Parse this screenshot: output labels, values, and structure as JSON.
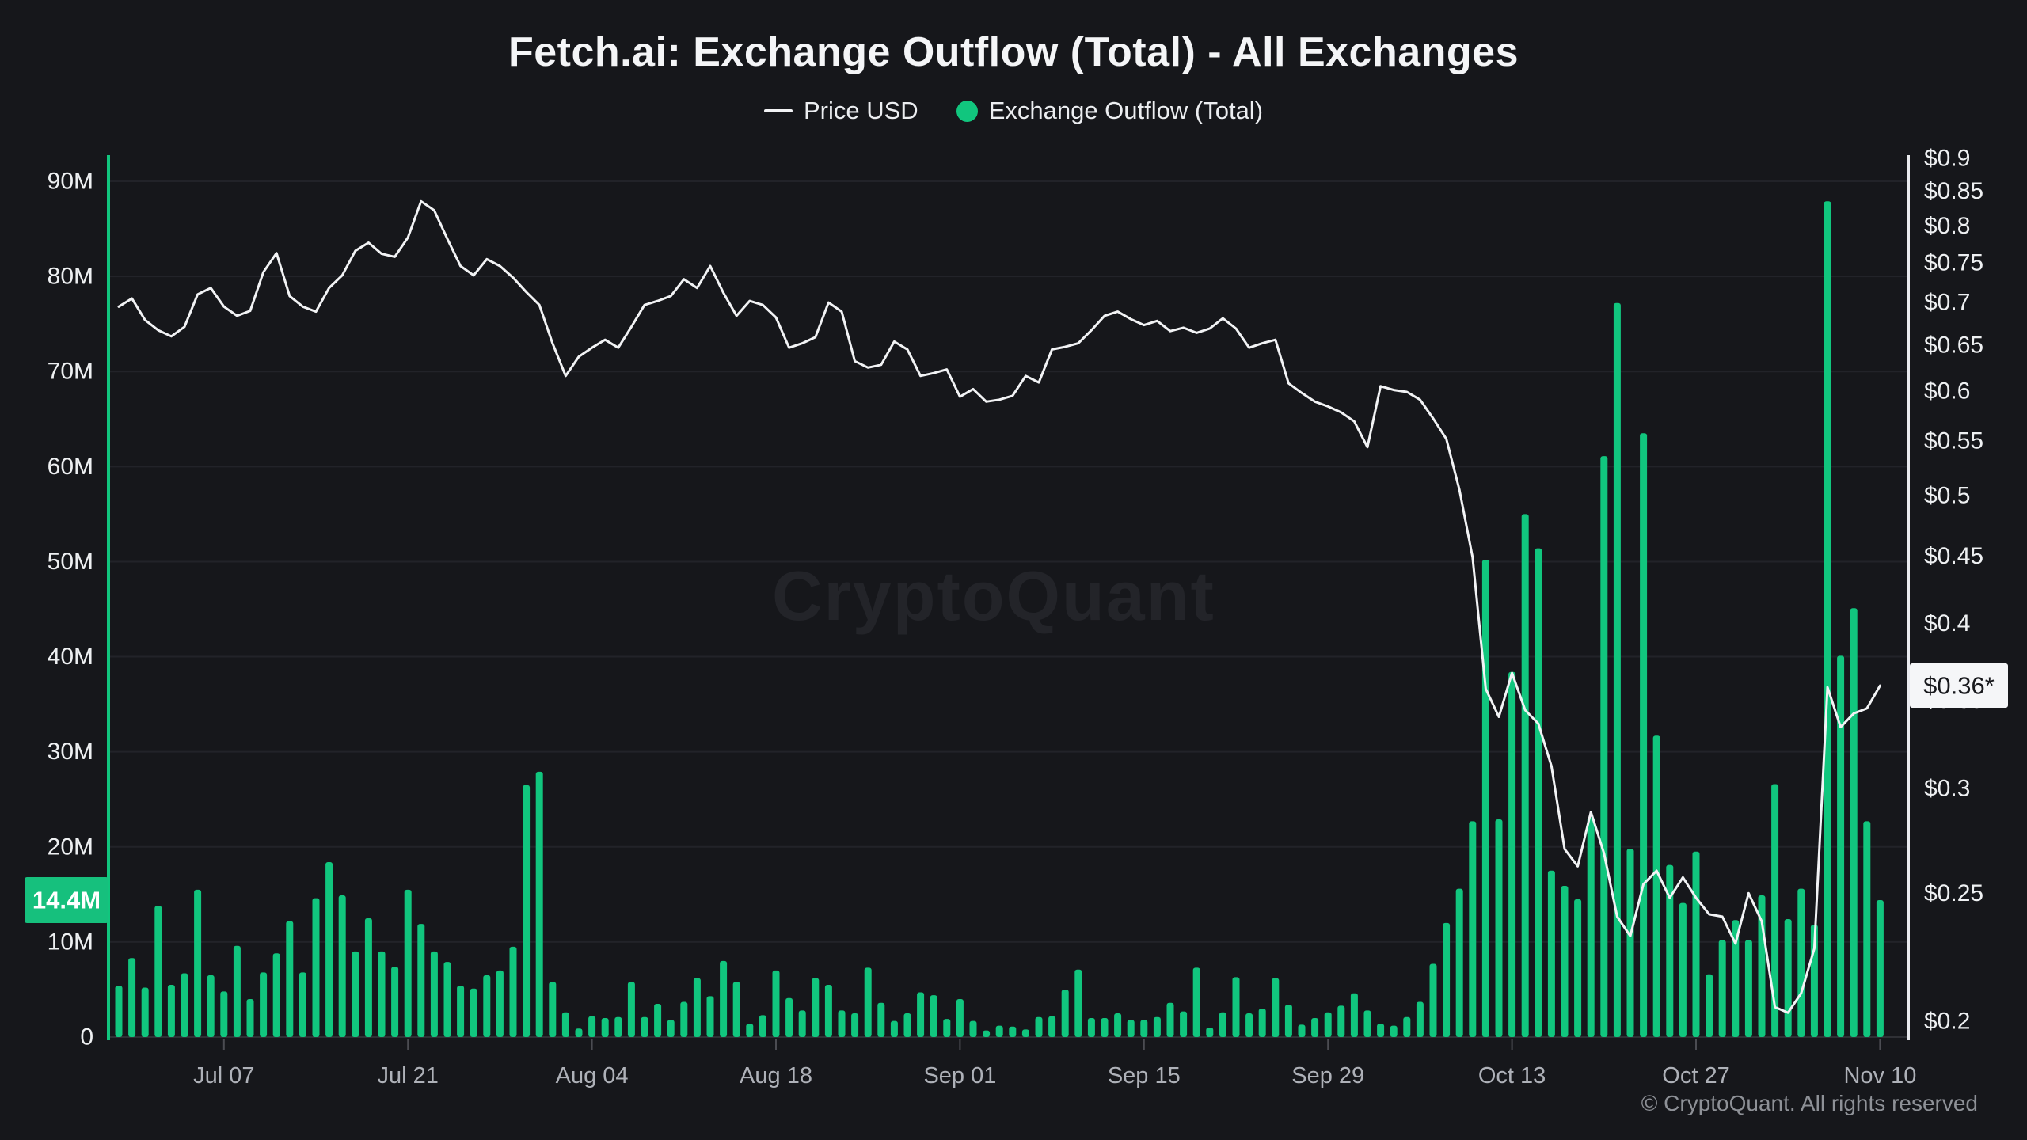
{
  "header": {
    "title": "Fetch.ai: Exchange Outflow (Total) - All Exchanges",
    "legend": [
      {
        "label": "Price USD",
        "swatch": "line",
        "color": "#f2f3f5"
      },
      {
        "label": "Exchange Outflow (Total)",
        "swatch": "dot",
        "color": "#11c67e"
      }
    ]
  },
  "watermark": "CryptoQuant",
  "footer": {
    "copyright": "© CryptoQuant. All rights reserved"
  },
  "colors": {
    "background": "#16171b",
    "gridline": "#222329",
    "baseline": "#2f3035",
    "tick": "#4b4c52",
    "bar_green": "#11c67e",
    "price_line": "#f2f3f5",
    "axis_text": "#eef0f2",
    "x_label_text": "#aeb1b8",
    "left_badge_bg": "#16c07d",
    "left_badge_text": "#ffffff",
    "right_badge_bg": "#f5f6f8",
    "right_badge_text": "#17181c",
    "left_axis_line": "#11c67e",
    "right_axis_line": "#e9eaee"
  },
  "left_axis": {
    "labels": [
      "90M",
      "80M",
      "70M",
      "60M",
      "50M",
      "40M",
      "30M",
      "20M",
      "10M",
      "0"
    ],
    "values": [
      90,
      80,
      70,
      60,
      50,
      40,
      30,
      20,
      10,
      0
    ],
    "current_badge": "14.4M",
    "current_value": 14.4
  },
  "right_axis": {
    "labels": [
      "$0.9",
      "$0.85",
      "$0.8",
      "$0.75",
      "$0.7",
      "$0.65",
      "$0.6",
      "$0.55",
      "$0.5",
      "$0.45",
      "$0.4",
      "$0.35",
      "$0.3",
      "$0.25",
      "$0.2"
    ],
    "values": [
      0.9,
      0.85,
      0.8,
      0.75,
      0.7,
      0.65,
      0.6,
      0.55,
      0.5,
      0.45,
      0.4,
      0.35,
      0.3,
      0.25,
      0.2
    ],
    "current_badge": "$0.36*",
    "current_value": 0.359
  },
  "x_axis": {
    "tick_labels": [
      "Jul 07",
      "Jul 21",
      "Aug 04",
      "Aug 18",
      "Sep 01",
      "Sep 15",
      "Sep 29",
      "Oct 13",
      "Oct 27",
      "Nov 10"
    ],
    "tick_indices": [
      8,
      22,
      36,
      50,
      64,
      78,
      92,
      106,
      120,
      134
    ]
  },
  "chart_data": {
    "type": "combo",
    "title": "Fetch.ai: Exchange Outflow (Total) - All Exchanges",
    "left_ylim": [
      0,
      90
    ],
    "right_ylim_log": [
      0.2,
      0.9
    ],
    "grid": "horizontal-only",
    "legend_position": "top-center",
    "dates": [
      "Jun 29",
      "Jun 30",
      "Jul 01",
      "Jul 02",
      "Jul 03",
      "Jul 04",
      "Jul 05",
      "Jul 06",
      "Jul 07",
      "Jul 08",
      "Jul 09",
      "Jul 10",
      "Jul 11",
      "Jul 12",
      "Jul 13",
      "Jul 14",
      "Jul 15",
      "Jul 16",
      "Jul 17",
      "Jul 18",
      "Jul 19",
      "Jul 20",
      "Jul 21",
      "Jul 22",
      "Jul 23",
      "Jul 24",
      "Jul 25",
      "Jul 26",
      "Jul 27",
      "Jul 28",
      "Jul 29",
      "Jul 30",
      "Jul 31",
      "Aug 01",
      "Aug 02",
      "Aug 03",
      "Aug 04",
      "Aug 05",
      "Aug 06",
      "Aug 07",
      "Aug 08",
      "Aug 09",
      "Aug 10",
      "Aug 11",
      "Aug 12",
      "Aug 13",
      "Aug 14",
      "Aug 15",
      "Aug 16",
      "Aug 17",
      "Aug 18",
      "Aug 19",
      "Aug 20",
      "Aug 21",
      "Aug 22",
      "Aug 23",
      "Aug 24",
      "Aug 25",
      "Aug 26",
      "Aug 27",
      "Aug 28",
      "Aug 29",
      "Aug 30",
      "Aug 31",
      "Sep 01",
      "Sep 02",
      "Sep 03",
      "Sep 04",
      "Sep 05",
      "Sep 06",
      "Sep 07",
      "Sep 08",
      "Sep 09",
      "Sep 10",
      "Sep 11",
      "Sep 12",
      "Sep 13",
      "Sep 14",
      "Sep 15",
      "Sep 16",
      "Sep 17",
      "Sep 18",
      "Sep 19",
      "Sep 20",
      "Sep 21",
      "Sep 22",
      "Sep 23",
      "Sep 24",
      "Sep 25",
      "Sep 26",
      "Sep 27",
      "Sep 28",
      "Sep 29",
      "Sep 30",
      "Oct 01",
      "Oct 02",
      "Oct 03",
      "Oct 04",
      "Oct 05",
      "Oct 06",
      "Oct 07",
      "Oct 08",
      "Oct 09",
      "Oct 10",
      "Oct 11",
      "Oct 12",
      "Oct 13",
      "Oct 14",
      "Oct 15",
      "Oct 16",
      "Oct 17",
      "Oct 18",
      "Oct 19",
      "Oct 20",
      "Oct 21",
      "Oct 22",
      "Oct 23",
      "Oct 24",
      "Oct 25",
      "Oct 26",
      "Oct 27",
      "Oct 28",
      "Oct 29",
      "Oct 30",
      "Oct 31",
      "Nov 01",
      "Nov 02",
      "Nov 03",
      "Nov 04",
      "Nov 05",
      "Nov 06",
      "Nov 07",
      "Nov 08",
      "Nov 09",
      "Nov 10"
    ],
    "series": [
      {
        "name": "Exchange Outflow (Total)",
        "type": "bar",
        "axis": "left",
        "unit": "M",
        "color": "#11c67e",
        "values": [
          5.4,
          8.3,
          5.2,
          13.8,
          5.5,
          6.7,
          15.5,
          6.5,
          4.8,
          9.6,
          4.0,
          6.8,
          8.8,
          12.2,
          6.8,
          14.6,
          18.4,
          14.9,
          9.0,
          12.5,
          9.0,
          7.4,
          15.5,
          11.9,
          9.0,
          7.9,
          5.4,
          5.1,
          6.5,
          7.0,
          9.5,
          26.5,
          27.9,
          5.8,
          2.6,
          0.9,
          2.2,
          2.0,
          2.1,
          5.8,
          2.1,
          3.5,
          1.8,
          3.7,
          6.2,
          4.3,
          8.0,
          5.8,
          1.4,
          2.3,
          7.0,
          4.1,
          2.8,
          6.2,
          5.5,
          2.8,
          2.5,
          7.3,
          3.6,
          1.7,
          2.5,
          4.7,
          4.4,
          1.9,
          4.0,
          1.7,
          0.7,
          1.2,
          1.1,
          0.8,
          2.1,
          2.2,
          5.0,
          7.1,
          2.0,
          2.0,
          2.5,
          1.8,
          1.8,
          2.1,
          3.6,
          2.7,
          7.3,
          1.0,
          2.6,
          6.3,
          2.5,
          3.0,
          6.2,
          3.4,
          1.3,
          2.0,
          2.6,
          3.3,
          4.6,
          2.8,
          1.4,
          1.2,
          2.1,
          3.7,
          7.7,
          12.0,
          15.6,
          22.7,
          50.2,
          22.9,
          38.4,
          55.0,
          51.4,
          17.5,
          15.9,
          14.5,
          23.1,
          61.1,
          77.2,
          19.8,
          63.5,
          31.7,
          18.1,
          14.1,
          19.5,
          6.6,
          10.2,
          12.3,
          10.2,
          14.9,
          26.6,
          12.4,
          15.6,
          11.8,
          87.9,
          40.1,
          45.1,
          22.7,
          14.4
        ]
      },
      {
        "name": "Price USD",
        "type": "line",
        "axis": "right",
        "unit": "$",
        "color": "#f2f3f5",
        "values": [
          0.695,
          0.705,
          0.679,
          0.667,
          0.66,
          0.671,
          0.71,
          0.718,
          0.695,
          0.684,
          0.69,
          0.738,
          0.763,
          0.708,
          0.695,
          0.689,
          0.718,
          0.734,
          0.766,
          0.777,
          0.762,
          0.758,
          0.784,
          0.835,
          0.822,
          0.782,
          0.746,
          0.734,
          0.755,
          0.746,
          0.731,
          0.713,
          0.697,
          0.652,
          0.616,
          0.637,
          0.647,
          0.656,
          0.647,
          0.671,
          0.697,
          0.702,
          0.708,
          0.729,
          0.718,
          0.746,
          0.712,
          0.684,
          0.702,
          0.697,
          0.682,
          0.647,
          0.652,
          0.659,
          0.7,
          0.689,
          0.632,
          0.625,
          0.628,
          0.654,
          0.645,
          0.616,
          0.619,
          0.623,
          0.594,
          0.602,
          0.589,
          0.591,
          0.595,
          0.616,
          0.609,
          0.645,
          0.648,
          0.652,
          0.667,
          0.684,
          0.689,
          0.68,
          0.673,
          0.678,
          0.666,
          0.67,
          0.664,
          0.669,
          0.681,
          0.669,
          0.647,
          0.652,
          0.656,
          0.608,
          0.598,
          0.589,
          0.584,
          0.578,
          0.569,
          0.544,
          0.605,
          0.601,
          0.599,
          0.591,
          0.572,
          0.552,
          0.505,
          0.449,
          0.357,
          0.34,
          0.367,
          0.344,
          0.336,
          0.312,
          0.27,
          0.262,
          0.288,
          0.268,
          0.24,
          0.232,
          0.254,
          0.26,
          0.248,
          0.257,
          0.248,
          0.241,
          0.24,
          0.229,
          0.25,
          0.238,
          0.205,
          0.203,
          0.21,
          0.227,
          0.358,
          0.334,
          0.342,
          0.345,
          0.359
        ]
      }
    ]
  }
}
